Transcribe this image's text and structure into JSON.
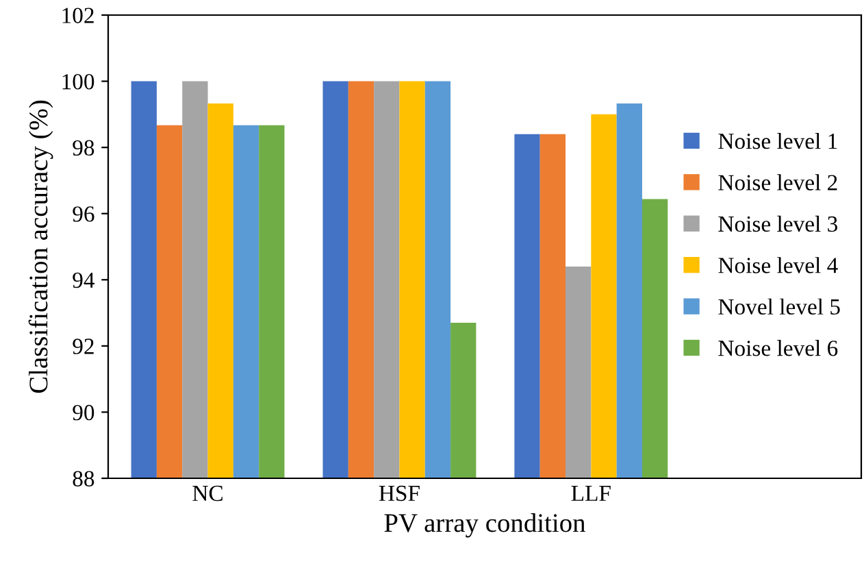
{
  "chart_data": {
    "type": "bar",
    "xlabel": "PV array condition",
    "ylabel": "Classification accuracy (%)",
    "categories": [
      "NC",
      "HSF",
      "LLF"
    ],
    "series": [
      {
        "name": "Noise level 1",
        "color": "#4472c4",
        "values": [
          100,
          100,
          98.4
        ]
      },
      {
        "name": "Noise level 2",
        "color": "#ed7d31",
        "values": [
          98.67,
          100,
          98.4
        ]
      },
      {
        "name": "Noise level 3",
        "color": "#a5a5a5",
        "values": [
          100,
          100,
          94.4
        ]
      },
      {
        "name": "Noise level 4",
        "color": "#ffc000",
        "values": [
          99.33,
          100,
          99.0
        ]
      },
      {
        "name": "Novel level 5",
        "color": "#5b9bd5",
        "values": [
          98.67,
          100,
          99.33
        ]
      },
      {
        "name": "Noise level 6",
        "color": "#70ad47",
        "values": [
          98.67,
          92.7,
          96.44
        ]
      }
    ],
    "ylim": [
      88,
      102
    ],
    "yticks": [
      88,
      90,
      92,
      94,
      96,
      98,
      100,
      102
    ],
    "grid": false,
    "legend": "right"
  }
}
